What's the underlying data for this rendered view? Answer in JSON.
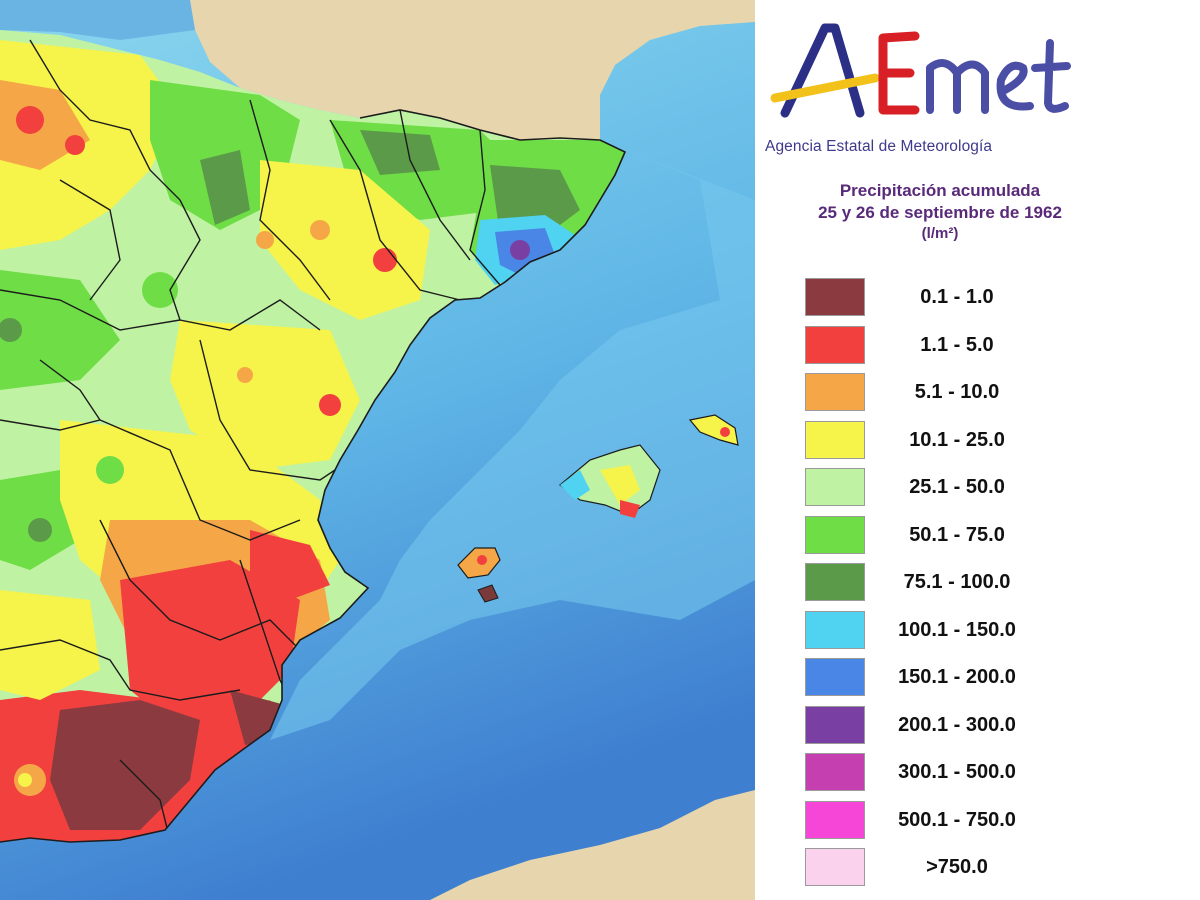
{
  "brand": {
    "logo_text": "AEmet",
    "agency": "Agencia Estatal de Meteorología"
  },
  "title": {
    "line1": "Precipitación acumulada",
    "line2": "25 y 26 de septiembre de 1962",
    "units": "(l/m²)"
  },
  "legend": [
    {
      "label": "0.1 - 1.0",
      "color": "#8b3a3f"
    },
    {
      "label": "1.1 - 5.0",
      "color": "#f2403f"
    },
    {
      "label": "5.1 - 10.0",
      "color": "#f5a747"
    },
    {
      "label": "10.1 - 25.0",
      "color": "#f6f34a"
    },
    {
      "label": "25.1 - 50.0",
      "color": "#bff3a3"
    },
    {
      "label": "50.1 - 75.0",
      "color": "#6fdd46"
    },
    {
      "label": "75.1 - 100.0",
      "color": "#5a9a48"
    },
    {
      "label": "100.1 - 150.0",
      "color": "#4fd3f0"
    },
    {
      "label": "150.1 - 200.0",
      "color": "#4a86e6"
    },
    {
      "label": "200.1 - 300.0",
      "color": "#7a3fa3"
    },
    {
      "label": "300.1 - 500.0",
      "color": "#c63fb0"
    },
    {
      "label": "500.1 - 750.0",
      "color": "#f546d8"
    },
    {
      "label": ">750.0",
      "color": "#fad2ee"
    }
  ],
  "colors": {
    "sea_light": "#79d2ee",
    "sea_deep": "#3f86d6",
    "land_outside": "#e8d9b5",
    "border": "#1c1c1c"
  }
}
